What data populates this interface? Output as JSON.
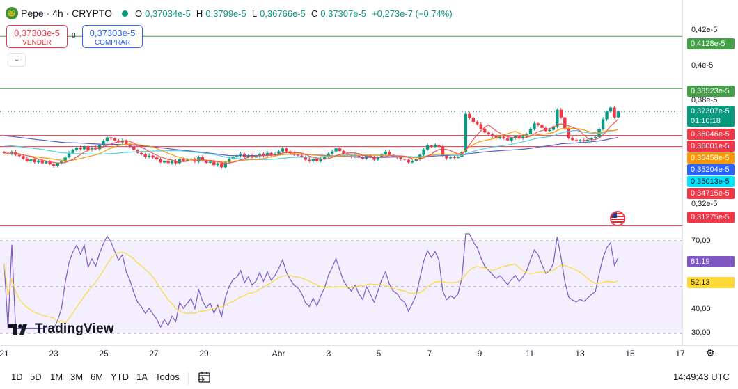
{
  "header": {
    "logo_icon": "pepe-coin-icon",
    "symbol_title": "Pepe · 4h · CRYPTO",
    "status_color": "#089981",
    "ohlc": [
      {
        "key": "O",
        "value": "0,37034e-5"
      },
      {
        "key": "H",
        "value": "0,3799e-5"
      },
      {
        "key": "L",
        "value": "0,36766e-5"
      },
      {
        "key": "C",
        "value": "0,37307e-5"
      }
    ],
    "change": "+0,273e-7 (+0,74%)"
  },
  "trade": {
    "sell_price": "0,37303e-5",
    "sell_label": "VENDER",
    "spread": "0",
    "buy_price": "0,37303e-5",
    "buy_label": "COMPRAR",
    "collapse_icon": "chevron-down-icon"
  },
  "price_axis": {
    "ticks": [
      "0,42e-5",
      "0,4e-5",
      "0,38e-5",
      "0,32e-5"
    ],
    "tags": [
      {
        "label": "0,4128e-5",
        "color": "#43a047"
      },
      {
        "label": "0,38523e-5",
        "color": "#43a047"
      },
      {
        "label": "0,37307e-5",
        "sub": "01:10:18",
        "color": "#089981"
      },
      {
        "label": "0,36046e-5",
        "color": "#f23645"
      },
      {
        "label": "0,36001e-5",
        "color": "#f23645"
      },
      {
        "label": "0,35458e-5",
        "color": "#ff9800"
      },
      {
        "label": "0,35204e-5",
        "color": "#2962ff"
      },
      {
        "label": "0,35013e-5",
        "color": "#00bcd4"
      },
      {
        "label": "0,34715e-5",
        "color": "#f23645"
      },
      {
        "label": "0,31275e-5",
        "color": "#f23645"
      }
    ],
    "rsi_ticks": [
      "70,00",
      "40,00",
      "30,00"
    ],
    "rsi_tags": [
      {
        "label": "61,19",
        "color": "#7e57c2"
      },
      {
        "label": "52,13",
        "color": "#fdd835"
      }
    ]
  },
  "time_axis": {
    "ticks": [
      "21",
      "23",
      "25",
      "27",
      "29",
      "Abr",
      "3",
      "5",
      "7",
      "9",
      "11",
      "13",
      "15",
      "17"
    ],
    "settings_icon": "gear-icon"
  },
  "toolbar": {
    "timeframes": [
      "1D",
      "5D",
      "1M",
      "3M",
      "6M",
      "YTD",
      "1A",
      "Todos"
    ],
    "compare_icon": "date-range-icon",
    "clock": "14:49:43 UTC"
  },
  "watermark": {
    "text": "TradingView",
    "logo_icon": "tradingview-logo-icon"
  },
  "event_icon": "us-flag-event-icon",
  "chart_data": {
    "type": "candlestick",
    "title": "Pepe · 4h · CRYPTO",
    "price_scale_multiplier": "e-5",
    "ylim": [
      0.307,
      0.432
    ],
    "x_labels": [
      "21",
      "23",
      "25",
      "27",
      "29",
      "Abr",
      "3",
      "5",
      "7",
      "9",
      "11",
      "13",
      "15",
      "17"
    ],
    "horizontal_levels": [
      {
        "price": 0.4128,
        "color": "#43a047",
        "style": "solid"
      },
      {
        "price": 0.38523,
        "color": "#43a047",
        "style": "solid"
      },
      {
        "price": 0.37307,
        "color": "#089981",
        "style": "dotted"
      },
      {
        "price": 0.36046,
        "color": "#f23645",
        "style": "solid"
      },
      {
        "price": 0.35458,
        "color": "#f23645",
        "style": "solid"
      },
      {
        "price": 0.31275,
        "color": "#f23645",
        "style": "solid"
      }
    ],
    "closes": [
      0.3512,
      0.3508,
      0.3516,
      0.3502,
      0.3495,
      0.3482,
      0.3468,
      0.3478,
      0.3463,
      0.3472,
      0.3458,
      0.3466,
      0.3452,
      0.3444,
      0.3458,
      0.3466,
      0.3488,
      0.3512,
      0.3528,
      0.354,
      0.3532,
      0.3548,
      0.3526,
      0.354,
      0.3532,
      0.3555,
      0.3575,
      0.3594,
      0.3588,
      0.3578,
      0.3568,
      0.3578,
      0.3558,
      0.3546,
      0.3528,
      0.3512,
      0.3504,
      0.3492,
      0.3498,
      0.3488,
      0.3478,
      0.3462,
      0.347,
      0.3458,
      0.3468,
      0.3458,
      0.348,
      0.347,
      0.3476,
      0.3482,
      0.3466,
      0.349,
      0.3472,
      0.346,
      0.3466,
      0.3448,
      0.3458,
      0.3436,
      0.3462,
      0.348,
      0.3492,
      0.3496,
      0.3508,
      0.349,
      0.35,
      0.3488,
      0.3494,
      0.3508,
      0.3496,
      0.3512,
      0.35,
      0.3508,
      0.352,
      0.3536,
      0.352,
      0.351,
      0.3502,
      0.3498,
      0.349,
      0.3476,
      0.347,
      0.348,
      0.3468,
      0.348,
      0.349,
      0.3508,
      0.352,
      0.3536,
      0.3522,
      0.3508,
      0.35,
      0.3494,
      0.3502,
      0.349,
      0.3482,
      0.3498,
      0.3488,
      0.3476,
      0.349,
      0.3506,
      0.3518,
      0.3502,
      0.3492,
      0.3488,
      0.348,
      0.3476,
      0.3462,
      0.347,
      0.348,
      0.3502,
      0.353,
      0.3552,
      0.3544,
      0.3556,
      0.3546,
      0.35,
      0.3484,
      0.349,
      0.3486,
      0.3492,
      0.3518,
      0.3718,
      0.3698,
      0.3676,
      0.3664,
      0.364,
      0.362,
      0.361,
      0.36,
      0.359,
      0.3598,
      0.3588,
      0.3578,
      0.359,
      0.36,
      0.3588,
      0.3598,
      0.3612,
      0.364,
      0.3668,
      0.366,
      0.3644,
      0.3628,
      0.3634,
      0.3652,
      0.374,
      0.37,
      0.364,
      0.359,
      0.358,
      0.3574,
      0.358,
      0.3574,
      0.3582,
      0.359,
      0.3596,
      0.364,
      0.369,
      0.373,
      0.3752,
      0.37,
      0.3731
    ]
  }
}
